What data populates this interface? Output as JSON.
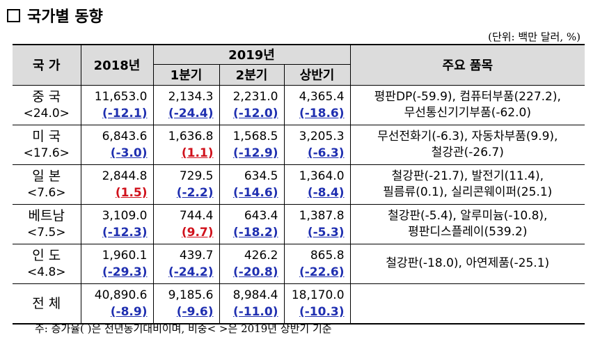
{
  "title": "국가별 동향",
  "unit": "(단위: 백만 달러, %)",
  "header": {
    "country": "국 가",
    "y2018": "2018년",
    "y2019": "2019년",
    "q1": "1분기",
    "q2": "2분기",
    "h1": "상반기",
    "items": "주요 품목"
  },
  "rows": [
    {
      "name": "중 국",
      "share": "<24.0>",
      "y2018": "11,653.0",
      "y2018_r": "(-12.1)",
      "y2018_c": "neg",
      "q1": "2,134.3",
      "q1_r": "(-24.4)",
      "q1_c": "neg",
      "q2": "2,231.0",
      "q2_r": "(-12.0)",
      "q2_c": "neg",
      "h1": "4,365.4",
      "h1_r": "(-18.6)",
      "h1_c": "neg",
      "items1": "평판DP(-59.9), 컴퓨터부품(227.2),",
      "items2": "무선통신기기부품(-62.0)"
    },
    {
      "name": "미 국",
      "share": "<17.6>",
      "y2018": "6,843.6",
      "y2018_r": "(-3.0)",
      "y2018_c": "neg",
      "q1": "1,636.8",
      "q1_r": "(1.1)",
      "q1_c": "pos",
      "q2": "1,568.5",
      "q2_r": "(-12.9)",
      "q2_c": "neg",
      "h1": "3,205.3",
      "h1_r": "(-6.3)",
      "h1_c": "neg",
      "items1": "무선전화기(-6.3), 자동차부품(9.9),",
      "items2": "철강관(-26.7)"
    },
    {
      "name": "일 본",
      "share": "<7.6>",
      "y2018": "2,844.8",
      "y2018_r": "(1.5)",
      "y2018_c": "pos",
      "q1": "729.5",
      "q1_r": "(-2.2)",
      "q1_c": "neg",
      "q2": "634.5",
      "q2_r": "(-14.6)",
      "q2_c": "neg",
      "h1": "1,364.0",
      "h1_r": "(-8.4)",
      "h1_c": "neg",
      "items1": "철강판(-21.7), 발전기(11.4),",
      "items2": "필름류(0.1), 실리콘웨이퍼(25.1)"
    },
    {
      "name": "베트남",
      "share": "<7.5>",
      "y2018": "3,109.0",
      "y2018_r": "(-12.3)",
      "y2018_c": "neg",
      "q1": "744.4",
      "q1_r": "(9.7)",
      "q1_c": "pos",
      "q2": "643.4",
      "q2_r": "(-18.2)",
      "q2_c": "neg",
      "h1": "1,387.8",
      "h1_r": "(-5.3)",
      "h1_c": "neg",
      "items1": "철강판(-5.4), 알루미늄(-10.8),",
      "items2": "평판디스플레이(539.2)"
    },
    {
      "name": "인 도",
      "share": "<4.8>",
      "y2018": "1,960.1",
      "y2018_r": "(-29.3)",
      "y2018_c": "neg",
      "q1": "439.7",
      "q1_r": "(-24.2)",
      "q1_c": "neg",
      "q2": "426.2",
      "q2_r": "(-20.8)",
      "q2_c": "neg",
      "h1": "865.8",
      "h1_r": "(-22.6)",
      "h1_c": "neg",
      "items1": "철강판(-18.0), 아연제품(-25.1)",
      "items2": ""
    },
    {
      "name": "전 체",
      "share": "",
      "y2018": "40,890.6",
      "y2018_r": "(-8.9)",
      "y2018_c": "neg",
      "q1": "9,185.6",
      "q1_r": "(-9.6)",
      "q1_c": "neg",
      "q2": "8,984.4",
      "q2_r": "(-11.0)",
      "q2_c": "neg",
      "h1": "18,170.0",
      "h1_r": "(-10.3)",
      "h1_c": "neg",
      "items1": "",
      "items2": ""
    }
  ],
  "note": "주: 증가율(  )은 전년동기대비이며, 비중<  >은 2019년 상반기 기준",
  "colors": {
    "negative": "#1f2fb0",
    "positive": "#d0111b",
    "header_bg": "#dcdcdc"
  }
}
